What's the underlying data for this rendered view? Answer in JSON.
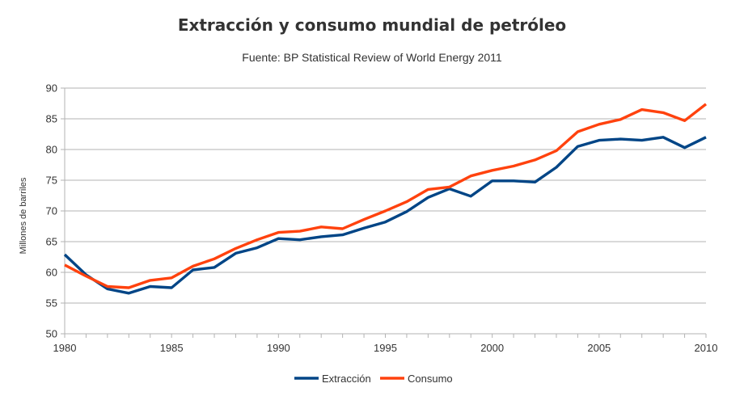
{
  "chart_data": {
    "type": "line",
    "title": "Extracción y consumo mundial de petróleo",
    "subtitle": "Fuente: BP Statistical Review of World Energy 2011",
    "xlabel": "",
    "ylabel": "Millones de barriles",
    "xlim": [
      1980,
      2010
    ],
    "ylim": [
      50,
      90
    ],
    "grid": true,
    "legend_position": "bottom",
    "x_ticks": [
      "1980",
      "1985",
      "1990",
      "1995",
      "2000",
      "2005",
      "2010"
    ],
    "y_ticks": [
      "50",
      "55",
      "60",
      "65",
      "70",
      "75",
      "80",
      "85",
      "90"
    ],
    "x": [
      1980,
      1981,
      1982,
      1983,
      1984,
      1985,
      1986,
      1987,
      1988,
      1989,
      1990,
      1991,
      1992,
      1993,
      1994,
      1995,
      1996,
      1997,
      1998,
      1999,
      2000,
      2001,
      2002,
      2003,
      2004,
      2005,
      2006,
      2007,
      2008,
      2009,
      2010
    ],
    "series": [
      {
        "name": "Extracción",
        "color": "#004586",
        "values": [
          62.9,
          59.6,
          57.3,
          56.6,
          57.7,
          57.5,
          60.4,
          60.8,
          63.1,
          64.0,
          65.5,
          65.3,
          65.8,
          66.1,
          67.2,
          68.2,
          69.9,
          72.2,
          73.6,
          72.4,
          74.9,
          74.9,
          74.7,
          77.1,
          80.5,
          81.5,
          81.7,
          81.5,
          82.0,
          80.3,
          82.0
        ]
      },
      {
        "name": "Consumo",
        "color": "#ff420e",
        "values": [
          61.2,
          59.4,
          57.7,
          57.5,
          58.7,
          59.1,
          61.0,
          62.2,
          63.9,
          65.3,
          66.5,
          66.7,
          67.4,
          67.1,
          68.6,
          70.0,
          71.5,
          73.5,
          73.9,
          75.7,
          76.6,
          77.3,
          78.3,
          79.8,
          82.9,
          84.1,
          84.9,
          86.5,
          86.0,
          84.7,
          87.4
        ]
      }
    ]
  }
}
